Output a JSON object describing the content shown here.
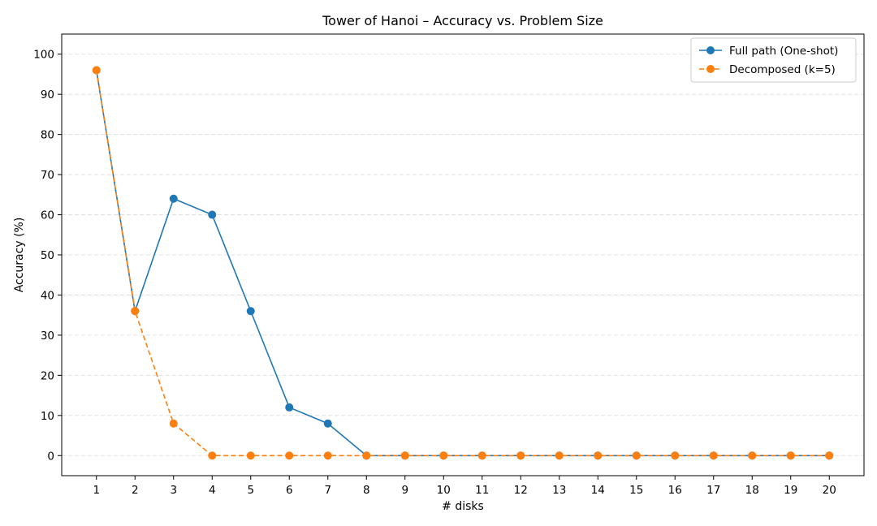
{
  "chart_data": {
    "type": "line",
    "title": "Tower of Hanoi – Accuracy vs. Problem Size",
    "xlabel": "# disks",
    "ylabel": "Accuracy (%)",
    "x": [
      1,
      2,
      3,
      4,
      5,
      6,
      7,
      8,
      9,
      10,
      11,
      12,
      13,
      14,
      15,
      16,
      17,
      18,
      19,
      20
    ],
    "xlim": [
      0.1,
      20.9
    ],
    "ylim": [
      -5,
      105
    ],
    "yticks": [
      0,
      10,
      20,
      30,
      40,
      50,
      60,
      70,
      80,
      90,
      100
    ],
    "grid": "y, dashed",
    "legend_position": "upper right",
    "series": [
      {
        "name": "Full path (One-shot)",
        "color": "#1f77b4",
        "line_style": "solid",
        "marker": "circle",
        "values": [
          96,
          36,
          64,
          60,
          36,
          12,
          8,
          0,
          0,
          0,
          0,
          0,
          0,
          0,
          0,
          0,
          0,
          0,
          0,
          0
        ]
      },
      {
        "name": "Decomposed (k=5)",
        "color": "#ff7f0e",
        "line_style": "dashed",
        "marker": "circle",
        "values": [
          96,
          36,
          8,
          0,
          0,
          0,
          0,
          0,
          0,
          0,
          0,
          0,
          0,
          0,
          0,
          0,
          0,
          0,
          0,
          0
        ]
      }
    ]
  }
}
